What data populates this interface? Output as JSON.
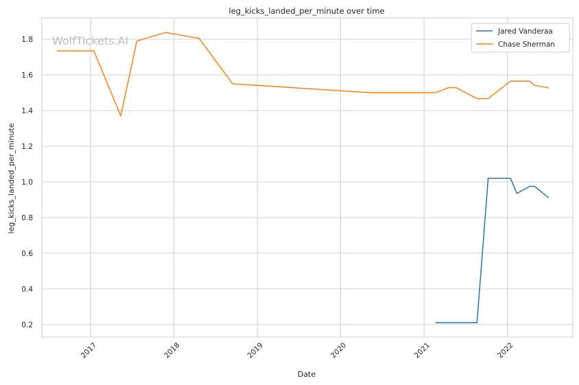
{
  "chart_data": {
    "type": "line",
    "title": "leg_kicks_landed_per_minute over time",
    "xlabel": "Date",
    "ylabel": "leg_kicks_landed_per_minute",
    "watermark": "WolfTickets.AI",
    "x_ticks": [
      "2017",
      "2018",
      "2019",
      "2020",
      "2021",
      "2022"
    ],
    "y_ticks": [
      "0.2",
      "0.4",
      "0.6",
      "0.8",
      "1.0",
      "1.2",
      "1.4",
      "1.6",
      "1.8"
    ],
    "xlim": [
      "2016-06-01",
      "2022-10-15"
    ],
    "ylim": [
      0.13,
      1.92
    ],
    "grid": true,
    "legend_position": "top-right",
    "series": [
      {
        "name": "Jared Vanderaa",
        "color": "#1f77b4",
        "points": [
          {
            "date": "2021-02-20",
            "y": 0.21
          },
          {
            "date": "2021-08-21",
            "y": 0.21
          },
          {
            "date": "2021-10-09",
            "y": 1.02
          },
          {
            "date": "2022-01-15",
            "y": 1.02
          },
          {
            "date": "2022-02-12",
            "y": 0.935
          },
          {
            "date": "2022-04-09",
            "y": 0.975
          },
          {
            "date": "2022-04-30",
            "y": 0.975
          },
          {
            "date": "2022-07-02",
            "y": 0.91
          }
        ]
      },
      {
        "name": "Chase Sherman",
        "color": "#ff7f0e",
        "points": [
          {
            "date": "2016-08-06",
            "y": 1.735
          },
          {
            "date": "2017-01-15",
            "y": 1.735
          },
          {
            "date": "2017-05-13",
            "y": 1.37
          },
          {
            "date": "2017-07-22",
            "y": 1.79
          },
          {
            "date": "2017-11-25",
            "y": 1.838
          },
          {
            "date": "2018-04-21",
            "y": 1.805
          },
          {
            "date": "2018-09-15",
            "y": 1.55
          },
          {
            "date": "2020-05-16",
            "y": 1.5
          },
          {
            "date": "2021-02-20",
            "y": 1.5
          },
          {
            "date": "2021-04-17",
            "y": 1.528
          },
          {
            "date": "2021-05-22",
            "y": 1.528
          },
          {
            "date": "2021-08-21",
            "y": 1.467
          },
          {
            "date": "2021-10-09",
            "y": 1.467
          },
          {
            "date": "2022-01-15",
            "y": 1.565
          },
          {
            "date": "2022-04-09",
            "y": 1.565
          },
          {
            "date": "2022-04-30",
            "y": 1.542
          },
          {
            "date": "2022-07-02",
            "y": 1.527
          }
        ]
      }
    ]
  }
}
